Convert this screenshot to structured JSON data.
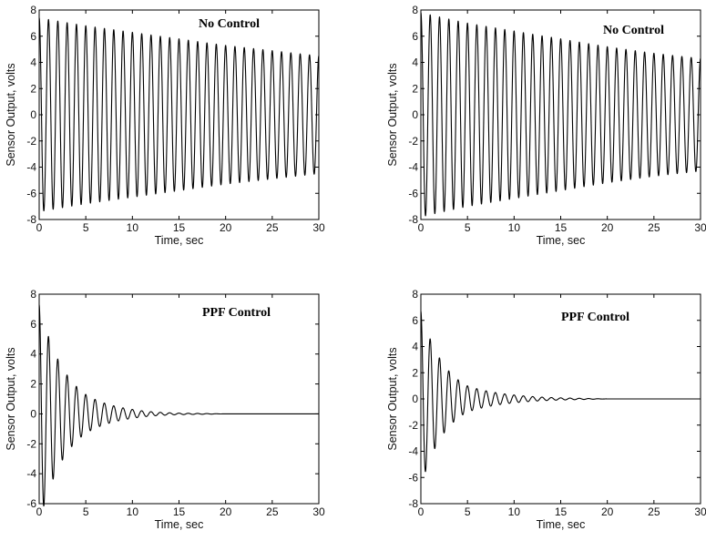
{
  "chart_data": [
    {
      "type": "line",
      "annotation": "No Control",
      "xlabel": "Time, sec",
      "ylabel": "Sensor Output, volts",
      "xlim": [
        0,
        30
      ],
      "ylim": [
        -8,
        8
      ],
      "xticks": [
        0,
        5,
        10,
        15,
        20,
        25,
        30
      ],
      "yticks": [
        8,
        6,
        4,
        2,
        0,
        -2,
        -4,
        -6,
        -8
      ],
      "series": [
        {
          "frequency_hz": 1.0,
          "amplitude_start": 7.4,
          "amplitude_end": 4.5,
          "x": [
            0,
            5,
            10,
            15,
            20,
            25,
            30
          ],
          "envelope": [
            7.4,
            6.8,
            6.3,
            5.8,
            5.3,
            4.9,
            4.5
          ]
        }
      ]
    },
    {
      "type": "line",
      "annotation": "No Control",
      "xlabel": "Time, sec",
      "ylabel": "Sensor Output, volts",
      "xlim": [
        0,
        30
      ],
      "ylim": [
        -8,
        8
      ],
      "xticks": [
        0,
        5,
        10,
        15,
        20,
        25,
        30
      ],
      "yticks": [
        8,
        6,
        4,
        2,
        0,
        -2,
        -4,
        -6,
        -8
      ],
      "series": [
        {
          "frequency_hz": 1.0,
          "amplitude_start": 7.8,
          "amplitude_end": 4.3,
          "x": [
            0,
            5,
            10,
            15,
            20,
            25,
            30
          ],
          "envelope": [
            7.8,
            7.0,
            6.4,
            5.8,
            5.2,
            4.7,
            4.3
          ]
        }
      ]
    },
    {
      "type": "line",
      "annotation": "PPF Control",
      "xlabel": "Time, sec",
      "ylabel": "Sensor Output, volts",
      "xlim": [
        0,
        30
      ],
      "ylim": [
        -6,
        8
      ],
      "xticks": [
        0,
        5,
        10,
        15,
        20,
        25,
        30
      ],
      "yticks": [
        8,
        6,
        4,
        2,
        0,
        -2,
        -4,
        -6
      ],
      "series": [
        {
          "frequency_hz": 1.0,
          "amplitude_start": 7.3,
          "amplitude_end": 0.0,
          "x": [
            0,
            5,
            10,
            15,
            20,
            25,
            30
          ],
          "envelope": [
            7.3,
            1.3,
            0.3,
            0.05,
            0,
            0,
            0
          ]
        }
      ]
    },
    {
      "type": "line",
      "annotation": "PPF Control",
      "xlabel": "Time, sec",
      "ylabel": "Sensor Output, volts",
      "xlim": [
        0,
        30
      ],
      "ylim": [
        -8,
        8
      ],
      "xticks": [
        0,
        5,
        10,
        15,
        20,
        25,
        30
      ],
      "yticks": [
        8,
        6,
        4,
        2,
        0,
        -2,
        -4,
        -6,
        -8
      ],
      "series": [
        {
          "frequency_hz": 1.0,
          "amplitude_start": 6.7,
          "amplitude_end": 0.0,
          "x": [
            0,
            5,
            10,
            15,
            20,
            25,
            30
          ],
          "envelope": [
            6.7,
            1.0,
            0.3,
            0.08,
            0,
            0,
            0
          ]
        }
      ]
    }
  ]
}
